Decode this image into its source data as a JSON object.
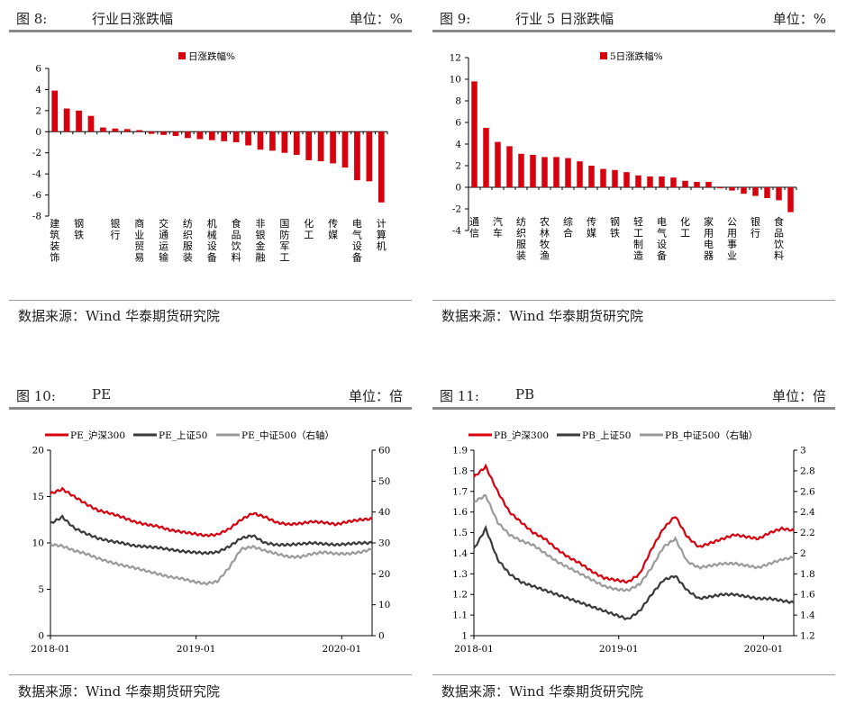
{
  "panels": [
    {
      "id": "fig8",
      "fig_no": "图 8:",
      "title": "行业日涨跌幅",
      "unit": "单位：%",
      "source": "数据来源：Wind 华泰期货研究院"
    },
    {
      "id": "fig9",
      "fig_no": "图 9:",
      "title": "行业 5 日涨跌幅",
      "unit": "单位：%",
      "source": "数据来源：Wind 华泰期货研究院"
    },
    {
      "id": "fig10",
      "fig_no": "图 10:",
      "title": "PE",
      "unit": "单位：倍",
      "source": "数据来源：Wind 华泰期货研究院"
    },
    {
      "id": "fig11",
      "fig_no": "图 11:",
      "title": "PB",
      "unit": "单位：倍",
      "source": "数据来源：Wind 华泰期货研究院"
    }
  ],
  "colors": {
    "red": "#D7000F",
    "dark": "#3A3A3A",
    "gray": "#9A9A9A"
  },
  "chart_data": [
    {
      "type": "bar",
      "legend": "日涨跌幅%",
      "ylim": [
        -8,
        6
      ],
      "yticks": [
        -8,
        -6,
        -4,
        -2,
        0,
        2,
        4,
        6
      ],
      "categories": [
        "建筑装饰",
        "",
        "钢铁",
        "",
        "",
        "银行",
        "",
        "商业贸易",
        "",
        "交通运输",
        "",
        "纺织服装",
        "",
        "机械设备",
        "",
        "食品饮料",
        "",
        "非银金融",
        "",
        "国防军工",
        "",
        "化工",
        "",
        "传媒",
        "",
        "电气设备",
        "",
        "计算机"
      ],
      "values": [
        3.9,
        2.2,
        2.0,
        1.5,
        0.4,
        0.3,
        0.25,
        0.15,
        -0.2,
        -0.3,
        -0.4,
        -0.6,
        -0.7,
        -0.8,
        -0.9,
        -1.0,
        -1.3,
        -1.7,
        -1.8,
        -2.0,
        -2.2,
        -2.7,
        -2.8,
        -3.0,
        -3.4,
        -4.6,
        -4.7,
        -6.7
      ]
    },
    {
      "type": "bar",
      "legend": "5日涨跌幅%",
      "ylim": [
        -4,
        12
      ],
      "yticks": [
        -4,
        -2,
        0,
        2,
        4,
        6,
        8,
        10,
        12
      ],
      "categories": [
        "通信",
        "",
        "汽车",
        "",
        "纺织服装",
        "",
        "农林牧渔",
        "",
        "综合",
        "",
        "传媒",
        "",
        "钢铁",
        "",
        "轻工制造",
        "",
        "电气设备",
        "",
        "化工",
        "",
        "家用电器",
        "",
        "公用事业",
        "",
        "银行",
        "",
        "食品饮料",
        ""
      ],
      "values": [
        9.8,
        5.5,
        4.2,
        3.8,
        3.1,
        3.0,
        2.8,
        2.8,
        2.7,
        2.4,
        2.0,
        1.7,
        1.6,
        1.4,
        1.1,
        1.0,
        1.0,
        0.9,
        0.6,
        0.5,
        0.5,
        -0.1,
        -0.3,
        -0.6,
        -0.8,
        -1.0,
        -1.2,
        -2.3
      ]
    },
    {
      "type": "line",
      "series_names": [
        "PE_沪深300",
        "PE_上证50",
        "PE_中证500（右轴）"
      ],
      "x_ticks": [
        "2018-01",
        "2019-01",
        "2020-01"
      ],
      "ylim_left": [
        0,
        20
      ],
      "yticks_left": [
        0,
        5,
        10,
        15,
        20
      ],
      "ylim_right": [
        0,
        60
      ],
      "yticks_right": [
        0,
        10,
        20,
        30,
        40,
        50,
        60
      ],
      "x": [
        0,
        1,
        2,
        3,
        4,
        5,
        6,
        7,
        8,
        9,
        10,
        11,
        12,
        13,
        14,
        15,
        16,
        17,
        18,
        19,
        20,
        21,
        22,
        23,
        24,
        25,
        26,
        27
      ],
      "series": [
        {
          "name": "PE_沪深300",
          "axis": "left",
          "values": [
            15.3,
            15.8,
            15.0,
            14.2,
            13.5,
            13.2,
            12.8,
            12.3,
            12.0,
            11.8,
            11.4,
            11.2,
            11.0,
            10.8,
            10.9,
            11.5,
            12.5,
            13.2,
            12.8,
            12.2,
            12.0,
            12.1,
            12.3,
            12.2,
            12.0,
            12.3,
            12.5,
            12.6
          ]
        },
        {
          "name": "PE_上证50",
          "axis": "left",
          "values": [
            12.1,
            12.8,
            11.6,
            11.0,
            10.5,
            10.2,
            10.0,
            9.7,
            9.6,
            9.5,
            9.3,
            9.1,
            9.0,
            8.9,
            9.0,
            9.6,
            10.5,
            10.8,
            10.0,
            9.8,
            9.8,
            9.9,
            10.0,
            9.9,
            9.8,
            9.9,
            10.0,
            10.0
          ]
        },
        {
          "name": "PE_中证500（右轴）",
          "axis": "right",
          "values": [
            29.5,
            29.0,
            27.5,
            26.5,
            25.0,
            23.8,
            22.8,
            22.0,
            21.0,
            20.0,
            19.0,
            18.5,
            17.5,
            16.8,
            17.5,
            22.0,
            28.0,
            28.8,
            27.5,
            26.5,
            25.5,
            25.5,
            26.5,
            27.0,
            26.5,
            26.5,
            27.0,
            28.0
          ]
        }
      ]
    },
    {
      "type": "line",
      "series_names": [
        "PB_沪深300",
        "PB_上证50",
        "PB_中证500（右轴）"
      ],
      "x_ticks": [
        "2018-01",
        "2019-01",
        "2020-01"
      ],
      "ylim_left": [
        1,
        1.9
      ],
      "yticks_left": [
        1,
        1.1,
        1.2,
        1.3,
        1.4,
        1.5,
        1.6,
        1.7,
        1.8,
        1.9
      ],
      "ylim_right": [
        1.2,
        3
      ],
      "yticks_right": [
        1.2,
        1.4,
        1.6,
        1.8,
        2,
        2.2,
        2.4,
        2.6,
        2.8,
        3
      ],
      "x": [
        0,
        1,
        2,
        3,
        4,
        5,
        6,
        7,
        8,
        9,
        10,
        11,
        12,
        13,
        14,
        15,
        16,
        17,
        18,
        19,
        20,
        21,
        22,
        23,
        24,
        25,
        26,
        27
      ],
      "series": [
        {
          "name": "PB_沪深300",
          "axis": "left",
          "values": [
            1.77,
            1.82,
            1.7,
            1.6,
            1.55,
            1.5,
            1.47,
            1.42,
            1.38,
            1.35,
            1.31,
            1.28,
            1.27,
            1.26,
            1.3,
            1.42,
            1.52,
            1.58,
            1.48,
            1.43,
            1.45,
            1.47,
            1.49,
            1.48,
            1.47,
            1.5,
            1.52,
            1.51
          ]
        },
        {
          "name": "PB_上证50",
          "axis": "left",
          "values": [
            1.42,
            1.52,
            1.37,
            1.3,
            1.26,
            1.24,
            1.22,
            1.2,
            1.18,
            1.16,
            1.14,
            1.12,
            1.1,
            1.08,
            1.12,
            1.2,
            1.27,
            1.29,
            1.22,
            1.18,
            1.19,
            1.2,
            1.2,
            1.19,
            1.18,
            1.18,
            1.17,
            1.16
          ]
        },
        {
          "name": "PB_中证500（右轴）",
          "axis": "right",
          "values": [
            2.5,
            2.56,
            2.3,
            2.18,
            2.12,
            2.08,
            2.0,
            1.92,
            1.86,
            1.8,
            1.74,
            1.68,
            1.65,
            1.64,
            1.7,
            1.86,
            2.06,
            2.14,
            1.92,
            1.86,
            1.88,
            1.9,
            1.9,
            1.88,
            1.86,
            1.9,
            1.94,
            1.96
          ]
        }
      ]
    }
  ]
}
